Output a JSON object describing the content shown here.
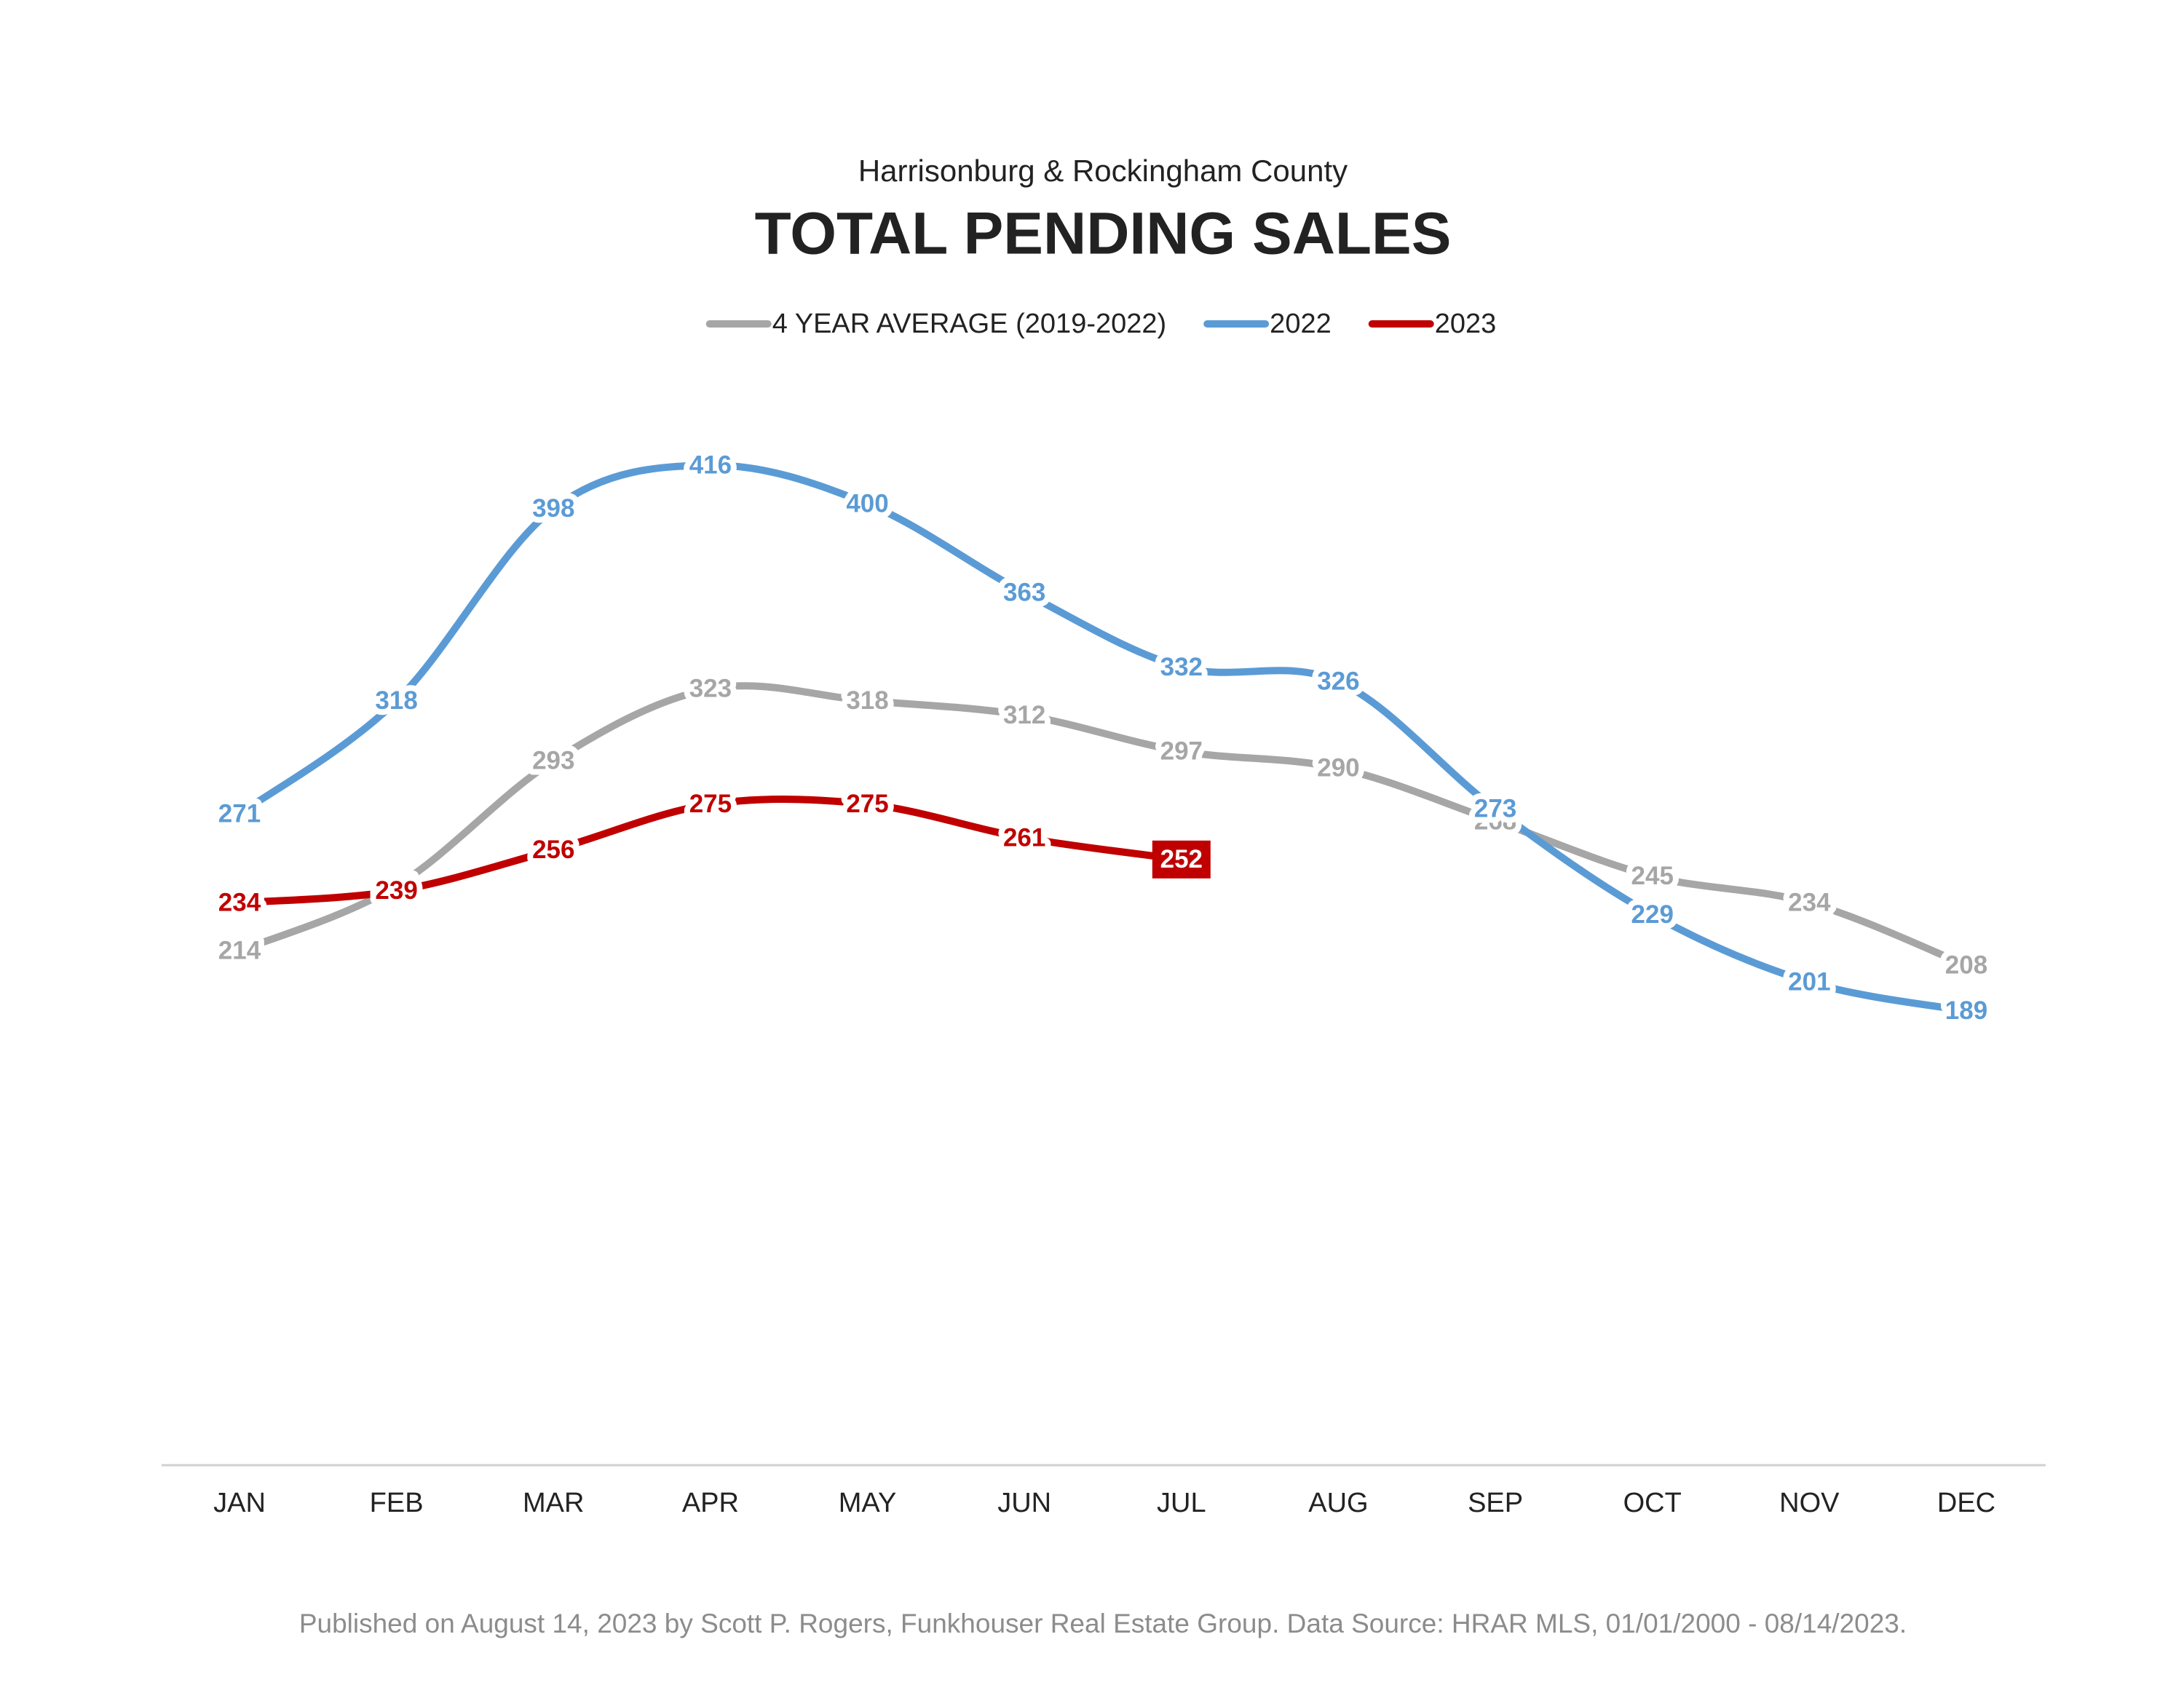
{
  "chart_data": {
    "type": "line",
    "subtitle": "Harrisonburg & Rockingham County",
    "title": "TOTAL PENDING SALES",
    "categories": [
      "JAN",
      "FEB",
      "MAR",
      "APR",
      "MAY",
      "JUN",
      "JUL",
      "AUG",
      "SEP",
      "OCT",
      "NOV",
      "DEC"
    ],
    "series": [
      {
        "name": "4 YEAR AVERAGE (2019-2022)",
        "color": "#a6a6a6",
        "values": [
          214,
          241,
          293,
          323,
          318,
          312,
          297,
          290,
          268,
          245,
          234,
          208
        ]
      },
      {
        "name": "2022",
        "color": "#5b9bd5",
        "values": [
          271,
          318,
          398,
          416,
          400,
          363,
          332,
          326,
          273,
          229,
          201,
          189
        ]
      },
      {
        "name": "2023",
        "color": "#c00000",
        "values": [
          234,
          239,
          256,
          275,
          275,
          261,
          252,
          null,
          null,
          null,
          null,
          null
        ]
      }
    ],
    "ylim": [
      0,
      450
    ],
    "legend": "top",
    "footer": "Published on August 14, 2023 by Scott P. Rogers, Funkhouser Real Estate Group. Data Source: HRAR MLS, 01/01/2000 - 08/14/2023."
  }
}
